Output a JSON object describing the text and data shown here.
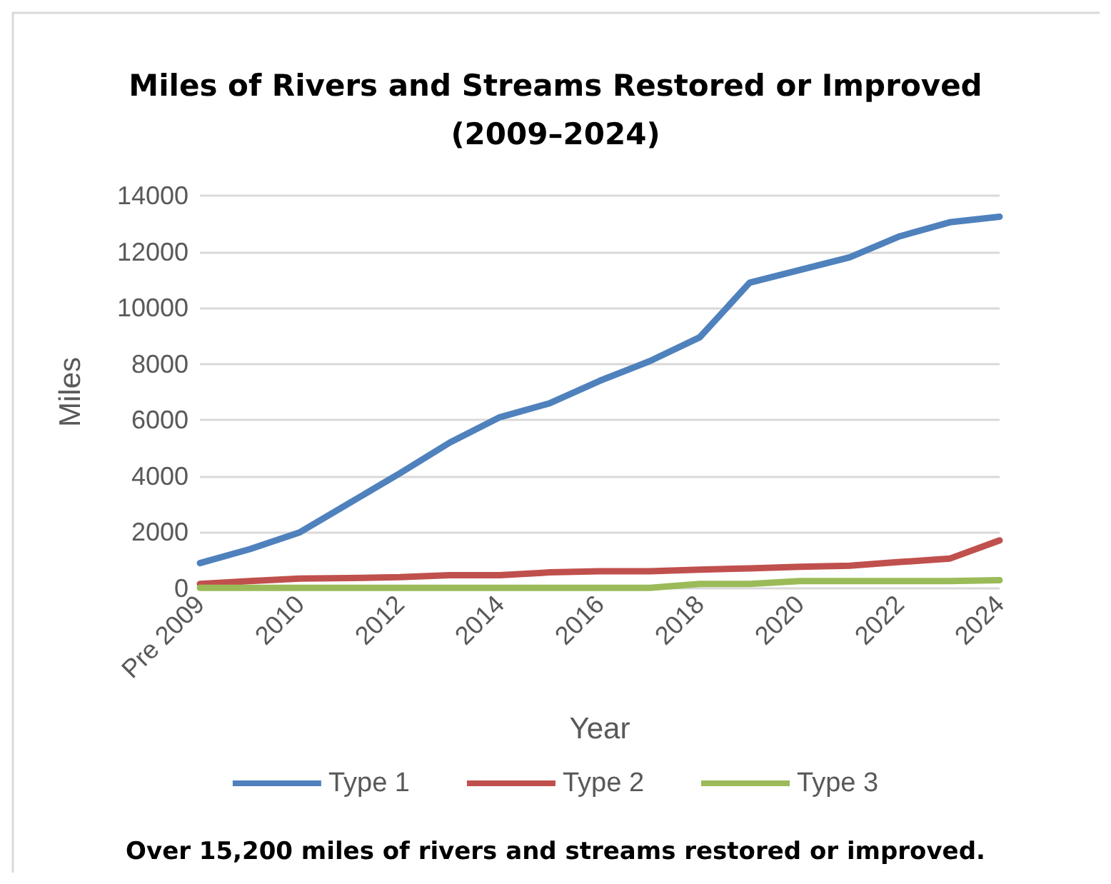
{
  "chart_data": {
    "type": "line",
    "title": "Miles of Rivers and Streams Restored or Improved\n(2009–2024)",
    "xlabel": "Year",
    "ylabel": "Miles",
    "categories": [
      "Pre 2009",
      null,
      "2010",
      null,
      "2012",
      null,
      "2014",
      null,
      "2016",
      null,
      "2018",
      null,
      "2020",
      null,
      "2022",
      null,
      "2024"
    ],
    "series": [
      {
        "name": "Type 1",
        "color": "#4f81bd",
        "values": [
          900,
          1400,
          2000,
          3050,
          4100,
          5200,
          6100,
          6600,
          7400,
          8100,
          8950,
          10900,
          11350,
          11800,
          12550,
          13050,
          13250
        ]
      },
      {
        "name": "Type 2",
        "color": "#c0504d",
        "values": [
          160,
          260,
          350,
          370,
          400,
          470,
          470,
          570,
          610,
          610,
          670,
          710,
          770,
          810,
          940,
          1060,
          1710
        ]
      },
      {
        "name": "Type 3",
        "color": "#9bbb59",
        "values": [
          20,
          20,
          20,
          20,
          20,
          20,
          20,
          20,
          20,
          20,
          160,
          160,
          260,
          260,
          260,
          260,
          290
        ]
      }
    ],
    "ylim": [
      0,
      14000
    ],
    "yticks": [
      0,
      2000,
      4000,
      6000,
      8000,
      10000,
      12000,
      14000
    ],
    "grid": "y",
    "legend": "bottom",
    "marker": "none",
    "line_style": "solid",
    "annotations": [
      "Over 15,200 miles of rivers and streams restored or improved."
    ]
  }
}
